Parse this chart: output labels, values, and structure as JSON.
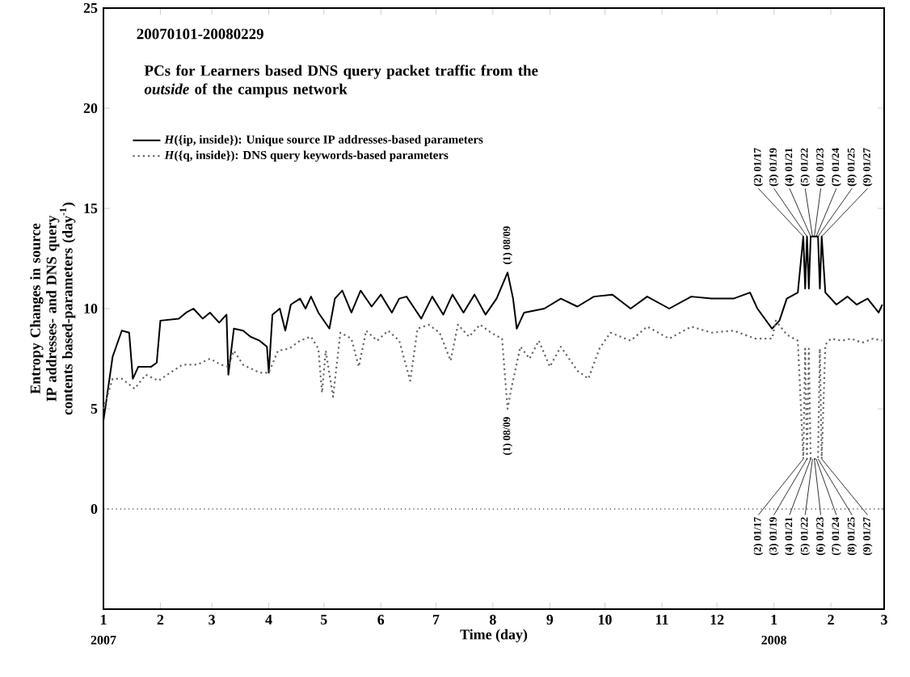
{
  "chart_data": {
    "type": "line",
    "title": "20070101-20080229",
    "subtitle": "PCs for Learners based DNS query packet traffic from the *outside* of the campus network",
    "xlabel": "Time (day)",
    "ylabel": "Entropy Changes in source IP addresses- and DNS query contents based-parameters (day$^{-1}$)",
    "xlim": [
      "2007-01-01",
      "2008-03-01"
    ],
    "xticks": [
      {
        "value": "2007-01-01",
        "label": "1"
      },
      {
        "value": "2007-02-01",
        "label": "2"
      },
      {
        "value": "2007-03-01",
        "label": "3"
      },
      {
        "value": "2007-04-01",
        "label": "4"
      },
      {
        "value": "2007-05-01",
        "label": "5"
      },
      {
        "value": "2007-06-01",
        "label": "6"
      },
      {
        "value": "2007-07-01",
        "label": "7"
      },
      {
        "value": "2007-08-01",
        "label": "8"
      },
      {
        "value": "2007-09-01",
        "label": "9"
      },
      {
        "value": "2007-10-01",
        "label": "10"
      },
      {
        "value": "2007-11-01",
        "label": "11"
      },
      {
        "value": "2007-12-01",
        "label": "12"
      },
      {
        "value": "2008-01-01",
        "label": "1"
      },
      {
        "value": "2008-02-01",
        "label": "2"
      },
      {
        "value": "2008-03-01",
        "label": "3"
      }
    ],
    "ylim": [
      -5,
      25
    ],
    "yticks": [
      0,
      5,
      10,
      15,
      20,
      25
    ],
    "legend": "top left",
    "series": [
      {
        "name": "*H*({ip, inside}): Unique source IP addresses-based parameters",
        "color": "#000000",
        "line_style": "solid",
        "x": [
          "2007-01-01",
          "2007-01-06",
          "2007-01-11",
          "2007-01-15",
          "2007-01-17",
          "2007-01-20",
          "2007-01-27",
          "2007-01-30",
          "2007-02-01",
          "2007-02-11",
          "2007-02-15",
          "2007-02-19",
          "2007-02-24",
          "2007-02-28",
          "2007-03-05",
          "2007-03-09",
          "2007-03-10",
          "2007-03-13",
          "2007-03-18",
          "2007-03-22",
          "2007-03-27",
          "2007-03-31",
          "2007-04-01",
          "2007-04-03",
          "2007-04-07",
          "2007-04-10",
          "2007-04-13",
          "2007-04-18",
          "2007-04-21",
          "2007-04-24",
          "2007-04-28",
          "2007-05-04",
          "2007-05-07",
          "2007-05-11",
          "2007-05-16",
          "2007-05-21",
          "2007-05-27",
          "2007-06-01",
          "2007-06-07",
          "2007-06-11",
          "2007-06-15",
          "2007-06-23",
          "2007-06-29",
          "2007-07-05",
          "2007-07-10",
          "2007-07-16",
          "2007-07-22",
          "2007-07-28",
          "2007-08-03",
          "2007-08-09",
          "2007-08-12",
          "2007-08-14",
          "2007-08-18",
          "2007-08-29",
          "2007-09-07",
          "2007-09-16",
          "2007-09-25",
          "2007-10-05",
          "2007-10-15",
          "2007-10-24",
          "2007-11-05",
          "2007-11-17",
          "2007-11-28",
          "2007-12-10",
          "2007-12-19",
          "2007-12-23",
          "2007-12-31",
          "2008-01-04",
          "2008-01-08",
          "2008-01-14",
          "2008-01-17",
          "2008-01-18",
          "2008-01-19",
          "2008-01-20",
          "2008-01-21",
          "2008-01-22",
          "2008-01-23",
          "2008-01-24",
          "2008-01-25",
          "2008-01-26",
          "2008-01-27",
          "2008-01-29",
          "2008-02-04",
          "2008-02-10",
          "2008-02-15",
          "2008-02-21",
          "2008-02-27",
          "2008-02-29"
        ],
        "values": [
          4.4,
          7.6,
          8.9,
          8.8,
          6.5,
          7.1,
          7.1,
          7.3,
          9.4,
          9.5,
          9.8,
          10.0,
          9.5,
          9.8,
          9.3,
          9.7,
          6.7,
          9.0,
          8.9,
          8.6,
          8.4,
          8.1,
          6.8,
          9.7,
          10.0,
          8.9,
          10.2,
          10.5,
          10.0,
          10.6,
          9.8,
          9.0,
          10.5,
          10.9,
          9.8,
          10.9,
          10.1,
          10.7,
          9.8,
          10.5,
          10.6,
          9.5,
          10.6,
          9.7,
          10.7,
          9.8,
          10.7,
          9.7,
          10.5,
          11.8,
          10.5,
          9.0,
          9.8,
          10.0,
          10.5,
          10.1,
          10.6,
          10.7,
          10.0,
          10.6,
          10.0,
          10.6,
          10.5,
          10.5,
          10.8,
          10.0,
          9.0,
          9.4,
          10.5,
          10.8,
          13.6,
          11.0,
          13.6,
          11.0,
          13.6,
          13.6,
          13.6,
          13.6,
          13.6,
          11.0,
          13.6,
          10.8,
          10.2,
          10.6,
          10.2,
          10.5,
          9.8,
          10.2
        ]
      },
      {
        "name": "*H*({q, inside}):  DNS query keywords-based parameters",
        "color": "#666666",
        "line_style": "dotted",
        "x": [
          "2007-01-01",
          "2007-01-06",
          "2007-01-11",
          "2007-01-18",
          "2007-01-24",
          "2007-01-31",
          "2007-02-08",
          "2007-02-13",
          "2007-02-21",
          "2007-02-28",
          "2007-03-06",
          "2007-03-10",
          "2007-03-13",
          "2007-03-18",
          "2007-03-27",
          "2007-04-01",
          "2007-04-06",
          "2007-04-12",
          "2007-04-18",
          "2007-04-24",
          "2007-04-28",
          "2007-04-30",
          "2007-05-02",
          "2007-05-06",
          "2007-05-10",
          "2007-05-16",
          "2007-05-20",
          "2007-05-24",
          "2007-05-30",
          "2007-06-05",
          "2007-06-11",
          "2007-06-17",
          "2007-06-21",
          "2007-06-27",
          "2007-07-03",
          "2007-07-09",
          "2007-07-13",
          "2007-07-19",
          "2007-07-25",
          "2007-07-31",
          "2007-08-06",
          "2007-08-09",
          "2007-08-11",
          "2007-08-16",
          "2007-08-21",
          "2007-08-26",
          "2007-09-01",
          "2007-09-07",
          "2007-09-16",
          "2007-09-22",
          "2007-09-28",
          "2007-10-04",
          "2007-10-15",
          "2007-10-24",
          "2007-11-05",
          "2007-11-17",
          "2007-11-28",
          "2007-12-10",
          "2007-12-22",
          "2007-12-31",
          "2008-01-02",
          "2008-01-08",
          "2008-01-14",
          "2008-01-17",
          "2008-01-18",
          "2008-01-19",
          "2008-01-20",
          "2008-01-21",
          "2008-01-22",
          "2008-01-23",
          "2008-01-24",
          "2008-01-25",
          "2008-01-26",
          "2008-01-27",
          "2008-01-29",
          "2008-02-01",
          "2008-02-07",
          "2008-02-12",
          "2008-02-18",
          "2008-02-24",
          "2008-02-29"
        ],
        "values": [
          5.0,
          6.5,
          6.5,
          6.0,
          6.7,
          6.4,
          6.9,
          7.2,
          7.2,
          7.5,
          7.2,
          7.1,
          7.9,
          7.2,
          6.8,
          6.8,
          7.9,
          8.0,
          8.4,
          8.6,
          8.0,
          5.8,
          7.9,
          5.6,
          8.8,
          8.5,
          7.1,
          8.9,
          8.4,
          8.9,
          8.4,
          6.4,
          9.0,
          9.2,
          8.8,
          7.4,
          9.2,
          8.6,
          9.2,
          8.8,
          8.5,
          5.0,
          6.0,
          8.1,
          7.5,
          8.4,
          7.1,
          8.1,
          6.9,
          6.5,
          8.0,
          8.8,
          8.4,
          9.1,
          8.5,
          9.1,
          8.8,
          8.9,
          8.5,
          8.5,
          9.4,
          8.7,
          8.4,
          2.5,
          8.0,
          2.5,
          8.0,
          2.5,
          2.5,
          2.5,
          2.5,
          2.5,
          8.0,
          2.5,
          8.2,
          8.5,
          8.4,
          8.5,
          8.3,
          8.5,
          8.4
        ]
      }
    ],
    "ref_lines": [
      {
        "axis": "y",
        "value": 0,
        "line_style": "dotted"
      }
    ],
    "annotations": [
      {
        "text": "(1) 08/09",
        "x": "2007-08-09",
        "y": 11.8
      },
      {
        "text": "(2) 01/17",
        "x": "2008-01-17",
        "y": 13.6
      },
      {
        "text": "(3) 01/19",
        "x": "2008-01-19",
        "y": 13.6
      },
      {
        "text": "(4) 01/21",
        "x": "2008-01-21",
        "y": 13.6
      },
      {
        "text": "(5) 01/22",
        "x": "2008-01-22",
        "y": 13.6
      },
      {
        "text": "(6) 01/23",
        "x": "2008-01-23",
        "y": 13.6
      },
      {
        "text": "(7) 01/24",
        "x": "2008-01-24",
        "y": 13.6
      },
      {
        "text": "(8) 01/25",
        "x": "2008-01-25",
        "y": 13.6
      },
      {
        "text": "(9) 01/27",
        "x": "2008-01-27",
        "y": 13.6
      },
      {
        "text": "(1) 08/09",
        "x": "2007-08-09",
        "y": 5.0
      },
      {
        "text": "(2) 01/17",
        "x": "2008-01-17",
        "y": 2.5
      },
      {
        "text": "(3) 01/19",
        "x": "2008-01-19",
        "y": 2.5
      },
      {
        "text": "(4) 01/21",
        "x": "2008-01-21",
        "y": 2.5
      },
      {
        "text": "(5) 01/22",
        "x": "2008-01-22",
        "y": 2.5
      },
      {
        "text": "(6) 01/23",
        "x": "2008-01-23",
        "y": 2.5
      },
      {
        "text": "(7) 01/24",
        "x": "2008-01-24",
        "y": 2.5
      },
      {
        "text": "(8) 01/25",
        "x": "2008-01-25",
        "y": 2.5
      },
      {
        "text": "(9) 01/27",
        "x": "2008-01-27",
        "y": 2.5
      },
      "2007",
      "2008"
    ]
  }
}
